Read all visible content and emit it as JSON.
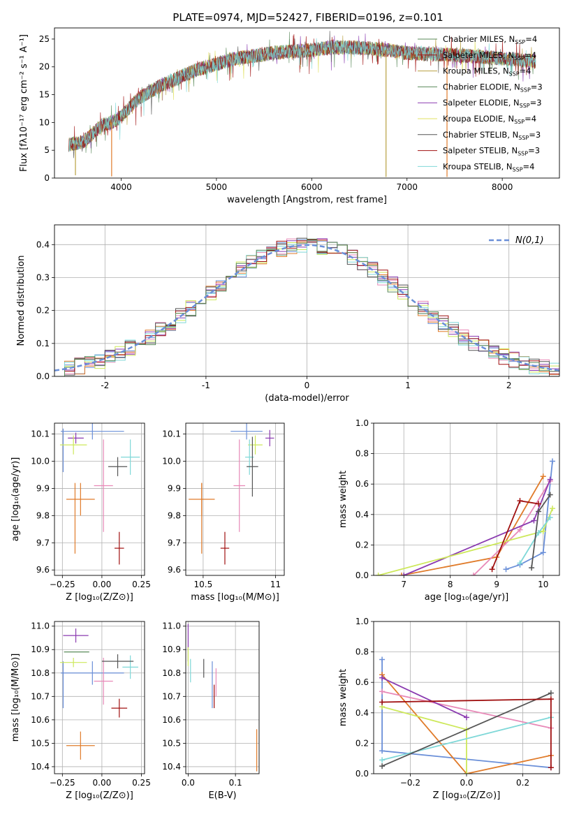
{
  "page_title": "PLATE=0974, MJD=52427, FIBERID=0196, z=0.101",
  "palette": {
    "blue": "#6a8fd8",
    "orange": "#e07b2a",
    "pink": "#e889b8",
    "purple": "#8a3ab0",
    "yellowgreen": "#cde85a",
    "cyan": "#7fd8d8",
    "darkgray": "#555555",
    "red": "#a01010",
    "olive": "#b8a040",
    "green": "#5a8a5a",
    "gray": "#777777"
  },
  "chart_data": [
    {
      "id": "spectrum",
      "type": "line",
      "title": "PLATE=0974, MJD=52427, FIBERID=0196, z=0.101",
      "xlabel": "wavelength [Angstrom, rest frame]",
      "ylabel": "Flux [fλ10⁻¹⁷ erg cm⁻² s⁻¹ A⁻¹]",
      "xlim": [
        3300,
        8600
      ],
      "ylim": [
        0,
        27
      ],
      "xticks": [
        4000,
        5000,
        6000,
        7000,
        8000
      ],
      "yticks": [
        0,
        5,
        10,
        15,
        20,
        25
      ],
      "grid": false,
      "legend_position": "top-right",
      "continuum": {
        "x": [
          3450,
          3600,
          3700,
          3800,
          3900,
          4000,
          4100,
          4200,
          4300,
          4400,
          4600,
          4800,
          5000,
          5200,
          5400,
          5600,
          5800,
          6000,
          6200,
          6400,
          6600,
          6800,
          7000,
          7200,
          7400,
          7600,
          7800,
          8000,
          8200,
          8350
        ],
        "y": [
          6,
          6.5,
          8,
          9.5,
          10,
          11,
          13,
          14.5,
          15.5,
          16.5,
          18,
          19.5,
          20.5,
          21.5,
          22,
          22.5,
          22.8,
          23,
          23.5,
          23.5,
          23.3,
          23,
          22.5,
          22.3,
          22.2,
          22,
          21.8,
          21.5,
          21.2,
          21
        ]
      },
      "spikes": [
        {
          "x": 3520,
          "y": 0.5
        },
        {
          "x": 3900,
          "y": 0.3
        },
        {
          "x": 6780,
          "y": 0.2
        },
        {
          "x": 7420,
          "y": 0.2
        }
      ],
      "series": [
        {
          "name": "Chabrier MILES, N",
          "sub": "SSP",
          "suffix": "=4",
          "color": "#5a8a5a"
        },
        {
          "name": "Salpeter MILES, N",
          "sub": "SSP",
          "suffix": "=4",
          "color": "#a01010"
        },
        {
          "name": "Kroupa MILES, N",
          "sub": "SSP",
          "suffix": "=4",
          "color": "#b8a040"
        },
        {
          "name": "Chabrier ELODIE, N",
          "sub": "SSP",
          "suffix": "=3",
          "color": "#5a8a5a"
        },
        {
          "name": "Salpeter ELODIE, N",
          "sub": "SSP",
          "suffix": "=3",
          "color": "#8a3ab0"
        },
        {
          "name": "Kroupa ELODIE, N",
          "sub": "SSP",
          "suffix": "=4",
          "color": "#e0e060"
        },
        {
          "name": "Chabrier STELIB, N",
          "sub": "SSP",
          "suffix": "=3",
          "color": "#555555"
        },
        {
          "name": "Salpeter STELIB, N",
          "sub": "SSP",
          "suffix": "=3",
          "color": "#a01010"
        },
        {
          "name": "Kroupa STELIB, N",
          "sub": "SSP",
          "suffix": "=4",
          "color": "#7fd8d8"
        }
      ]
    },
    {
      "id": "residuals",
      "type": "histogram",
      "xlabel": "(data-model)/error",
      "ylabel": "Normed distribution",
      "xlim": [
        -2.5,
        2.5
      ],
      "ylim": [
        0,
        0.46
      ],
      "xticks": [
        -2,
        -1,
        0,
        1,
        2
      ],
      "yticks": [
        0.0,
        0.1,
        0.2,
        0.3,
        0.4
      ],
      "grid": true,
      "legend_position": "top-right",
      "reference_curve": {
        "name": "N(0,1)",
        "color": "#6a8fd8",
        "style": "dashed"
      },
      "bin_width": 0.1,
      "series_colors": [
        "#6a8fd8",
        "#e07b2a",
        "#e889b8",
        "#8a3ab0",
        "#cde85a",
        "#7fd8d8",
        "#555555",
        "#a01010",
        "#5a8a5a"
      ]
    },
    {
      "id": "age_vs_Z",
      "type": "scatter",
      "xlabel": "Z [log₁₀(Z/Z⊙)]",
      "ylabel": "age  [log₁₀(age/yr)]",
      "xlim": [
        -0.3,
        0.27
      ],
      "ylim": [
        9.58,
        10.14
      ],
      "xticks": [
        -0.25,
        0.0,
        0.25
      ],
      "xtick_labels": [
        "−0.25",
        "0.00",
        "0.25"
      ],
      "yticks": [
        9.6,
        9.7,
        9.8,
        9.9,
        10.0,
        10.1
      ],
      "grid": true,
      "points": [
        {
          "x": -0.06,
          "y": 10.11,
          "xerr": 0.2,
          "yerr": 0.03,
          "color": "#6a8fd8"
        },
        {
          "x": -0.245,
          "y": 10.04,
          "xerr": 0.0,
          "yerr": 0.08,
          "color": "#6a8fd8"
        },
        {
          "x": -0.135,
          "y": 9.86,
          "xerr": 0.09,
          "yerr": 0.06,
          "color": "#e07b2a"
        },
        {
          "x": -0.17,
          "y": 9.79,
          "xerr": 0.0,
          "yerr": 0.13,
          "color": "#e07b2a"
        },
        {
          "x": 0.01,
          "y": 9.91,
          "xerr": 0.06,
          "yerr": 0.17,
          "color": "#e889b8"
        },
        {
          "x": -0.165,
          "y": 10.085,
          "xerr": 0.05,
          "yerr": 0.02,
          "color": "#8a3ab0"
        },
        {
          "x": -0.18,
          "y": 10.06,
          "xerr": 0.085,
          "yerr": 0.035,
          "color": "#cde85a"
        },
        {
          "x": 0.18,
          "y": 10.015,
          "xerr": 0.06,
          "yerr": 0.065,
          "color": "#7fd8d8"
        },
        {
          "x": 0.1,
          "y": 9.98,
          "xerr": 0.06,
          "yerr": 0.035,
          "color": "#555555"
        },
        {
          "x": 0.11,
          "y": 9.68,
          "xerr": 0.03,
          "yerr": 0.06,
          "color": "#a01010"
        }
      ]
    },
    {
      "id": "age_vs_mass",
      "type": "scatter",
      "xlabel": "mass [log₁₀(M/M⊙)]",
      "xlim": [
        10.38,
        11.06
      ],
      "ylim": [
        9.58,
        10.14
      ],
      "xticks": [
        10.5,
        11.0
      ],
      "yticks": [
        9.6,
        9.7,
        9.8,
        9.9,
        10.0,
        10.1
      ],
      "grid": true,
      "points": [
        {
          "x": 10.8,
          "y": 10.11,
          "xerr": 0.11,
          "yerr": 0.03,
          "color": "#6a8fd8"
        },
        {
          "x": 10.49,
          "y": 9.86,
          "xerr": 0.09,
          "yerr": 0.06,
          "color": "#e07b2a"
        },
        {
          "x": 10.49,
          "y": 9.79,
          "xerr": 0.0,
          "yerr": 0.13,
          "color": "#e07b2a"
        },
        {
          "x": 10.75,
          "y": 9.91,
          "xerr": 0.04,
          "yerr": 0.17,
          "color": "#e889b8"
        },
        {
          "x": 10.96,
          "y": 10.085,
          "xerr": 0.03,
          "yerr": 0.03,
          "color": "#8a3ab0"
        },
        {
          "x": 10.86,
          "y": 10.06,
          "xerr": 0.05,
          "yerr": 0.035,
          "color": "#cde85a"
        },
        {
          "x": 10.82,
          "y": 10.015,
          "xerr": 0.03,
          "yerr": 0.065,
          "color": "#7fd8d8"
        },
        {
          "x": 10.84,
          "y": 9.98,
          "xerr": 0.04,
          "yerr": 0.11,
          "color": "#555555"
        },
        {
          "x": 10.65,
          "y": 9.68,
          "xerr": 0.03,
          "yerr": 0.06,
          "color": "#a01010"
        }
      ]
    },
    {
      "id": "massweight_vs_age",
      "type": "line",
      "xlabel": "age  [log₁₀(age/yr)]",
      "ylabel": "mass weight",
      "xlim": [
        6.35,
        10.35
      ],
      "ylim": [
        0,
        1.0
      ],
      "xticks": [
        7,
        8,
        9,
        10
      ],
      "yticks": [
        0.0,
        0.2,
        0.4,
        0.6,
        0.8,
        1.0
      ],
      "grid": true,
      "series": [
        {
          "color": "#6a8fd8",
          "points": [
            [
              9.2,
              0.04
            ],
            [
              9.5,
              0.07
            ],
            [
              10.0,
              0.15
            ],
            [
              10.2,
              0.75
            ]
          ]
        },
        {
          "color": "#e07b2a",
          "points": [
            [
              6.95,
              0.0
            ],
            [
              9.0,
              0.12
            ],
            [
              10.0,
              0.65
            ]
          ]
        },
        {
          "color": "#e889b8",
          "points": [
            [
              8.5,
              0.0
            ],
            [
              9.5,
              0.3
            ],
            [
              10.15,
              0.62
            ]
          ]
        },
        {
          "color": "#8a3ab0",
          "points": [
            [
              7.0,
              0.0
            ],
            [
              9.8,
              0.36
            ],
            [
              10.15,
              0.63
            ]
          ]
        },
        {
          "color": "#cde85a",
          "points": [
            [
              6.45,
              0.0
            ],
            [
              10.0,
              0.29
            ],
            [
              10.2,
              0.44
            ]
          ]
        },
        {
          "color": "#7fd8d8",
          "points": [
            [
              9.5,
              0.08
            ],
            [
              9.9,
              0.28
            ],
            [
              10.15,
              0.38
            ]
          ]
        },
        {
          "color": "#555555",
          "points": [
            [
              9.75,
              0.05
            ],
            [
              9.9,
              0.42
            ],
            [
              10.15,
              0.53
            ]
          ]
        },
        {
          "color": "#a01010",
          "points": [
            [
              8.9,
              0.04
            ],
            [
              9.5,
              0.49
            ],
            [
              9.9,
              0.47
            ]
          ]
        }
      ]
    },
    {
      "id": "mass_vs_Z",
      "type": "scatter",
      "xlabel": "Z [log₁₀(Z/Z⊙)]",
      "ylabel": "mass [log₁₀(M/M⊙)]",
      "xlim": [
        -0.3,
        0.27
      ],
      "ylim": [
        10.37,
        11.02
      ],
      "xticks": [
        -0.25,
        0.0,
        0.25
      ],
      "xtick_labels": [
        "−0.25",
        "0.00",
        "0.25"
      ],
      "yticks": [
        10.4,
        10.5,
        10.6,
        10.7,
        10.8,
        10.9,
        11.0
      ],
      "grid": true,
      "points": [
        {
          "x": -0.06,
          "y": 10.8,
          "xerr": 0.2,
          "yerr": 0.05,
          "color": "#6a8fd8"
        },
        {
          "x": -0.245,
          "y": 10.75,
          "xerr": 0.0,
          "yerr": 0.1,
          "color": "#6a8fd8"
        },
        {
          "x": -0.135,
          "y": 10.49,
          "xerr": 0.09,
          "yerr": 0.06,
          "color": "#e07b2a"
        },
        {
          "x": 0.01,
          "y": 10.765,
          "xerr": 0.06,
          "yerr": 0.1,
          "color": "#e889b8"
        },
        {
          "x": -0.165,
          "y": 10.96,
          "xerr": 0.08,
          "yerr": 0.03,
          "color": "#8a3ab0"
        },
        {
          "x": -0.16,
          "y": 10.89,
          "xerr": 0.08,
          "yerr": 0.0,
          "color": "#5a8a5a"
        },
        {
          "x": -0.18,
          "y": 10.845,
          "xerr": 0.085,
          "yerr": 0.02,
          "color": "#cde85a"
        },
        {
          "x": 0.18,
          "y": 10.825,
          "xerr": 0.05,
          "yerr": 0.05,
          "color": "#7fd8d8"
        },
        {
          "x": 0.1,
          "y": 10.85,
          "xerr": 0.1,
          "yerr": 0.03,
          "color": "#555555"
        },
        {
          "x": 0.11,
          "y": 10.65,
          "xerr": 0.05,
          "yerr": 0.04,
          "color": "#a01010"
        }
      ]
    },
    {
      "id": "mass_vs_ebv",
      "type": "scatter",
      "xlabel": "E(B-V)",
      "xlim": [
        -0.005,
        0.15
      ],
      "ylim": [
        10.37,
        11.02
      ],
      "xticks": [
        0.0,
        0.1
      ],
      "xtick_labels": [
        "0.0",
        "0.1"
      ],
      "yticks": [
        10.4,
        10.5,
        10.6,
        10.7,
        10.8,
        10.9,
        11.0
      ],
      "grid": true,
      "points": [
        {
          "x": 0.0,
          "y": 10.93,
          "xerr": 0.0,
          "yerr": 0.08,
          "color": "#8a3ab0"
        },
        {
          "x": 0.0,
          "y": 10.87,
          "xerr": 0.0,
          "yerr": 0.04,
          "color": "#cde85a"
        },
        {
          "x": 0.005,
          "y": 10.81,
          "xerr": 0.0,
          "yerr": 0.05,
          "color": "#7fd8d8"
        },
        {
          "x": 0.033,
          "y": 10.82,
          "xerr": 0.0,
          "yerr": 0.04,
          "color": "#555555"
        },
        {
          "x": 0.051,
          "y": 10.75,
          "xerr": 0.0,
          "yerr": 0.1,
          "color": "#6a8fd8"
        },
        {
          "x": 0.055,
          "y": 10.7,
          "xerr": 0.0,
          "yerr": 0.05,
          "color": "#a01010"
        },
        {
          "x": 0.059,
          "y": 10.76,
          "xerr": 0.0,
          "yerr": 0.06,
          "color": "#e889b8"
        },
        {
          "x": 0.145,
          "y": 10.47,
          "xerr": 0.0,
          "yerr": 0.09,
          "color": "#e07b2a"
        }
      ]
    },
    {
      "id": "massweight_vs_Z",
      "type": "line",
      "xlabel": "Z [log₁₀(Z/Z⊙)]",
      "ylabel": "mass weight",
      "xlim": [
        -0.33,
        0.33
      ],
      "ylim": [
        0,
        1.0
      ],
      "xticks": [
        -0.2,
        0.0,
        0.2
      ],
      "xtick_labels": [
        "−0.2",
        "0.0",
        "0.2"
      ],
      "yticks": [
        0.0,
        0.2,
        0.4,
        0.6,
        0.8,
        1.0
      ],
      "grid": true,
      "series": [
        {
          "color": "#6a8fd8",
          "points": [
            [
              -0.3,
              0.75
            ],
            [
              -0.3,
              0.15
            ],
            [
              0.3,
              0.04
            ]
          ]
        },
        {
          "color": "#e07b2a",
          "points": [
            [
              -0.3,
              0.65
            ],
            [
              0.0,
              0.0
            ],
            [
              0.3,
              0.12
            ]
          ]
        },
        {
          "color": "#e889b8",
          "points": [
            [
              -0.3,
              0.54
            ],
            [
              0.3,
              0.3
            ]
          ]
        },
        {
          "color": "#8a3ab0",
          "points": [
            [
              -0.3,
              0.63
            ],
            [
              0.0,
              0.37
            ]
          ]
        },
        {
          "color": "#cde85a",
          "points": [
            [
              -0.3,
              0.44
            ],
            [
              0.0,
              0.29
            ],
            [
              0.0,
              0.0
            ]
          ]
        },
        {
          "color": "#7fd8d8",
          "points": [
            [
              -0.3,
              0.09
            ],
            [
              0.3,
              0.37
            ]
          ]
        },
        {
          "color": "#555555",
          "points": [
            [
              -0.3,
              0.05
            ],
            [
              0.3,
              0.53
            ]
          ]
        },
        {
          "color": "#a01010",
          "points": [
            [
              -0.3,
              0.47
            ],
            [
              0.3,
              0.49
            ],
            [
              0.3,
              0.04
            ]
          ]
        }
      ]
    }
  ]
}
